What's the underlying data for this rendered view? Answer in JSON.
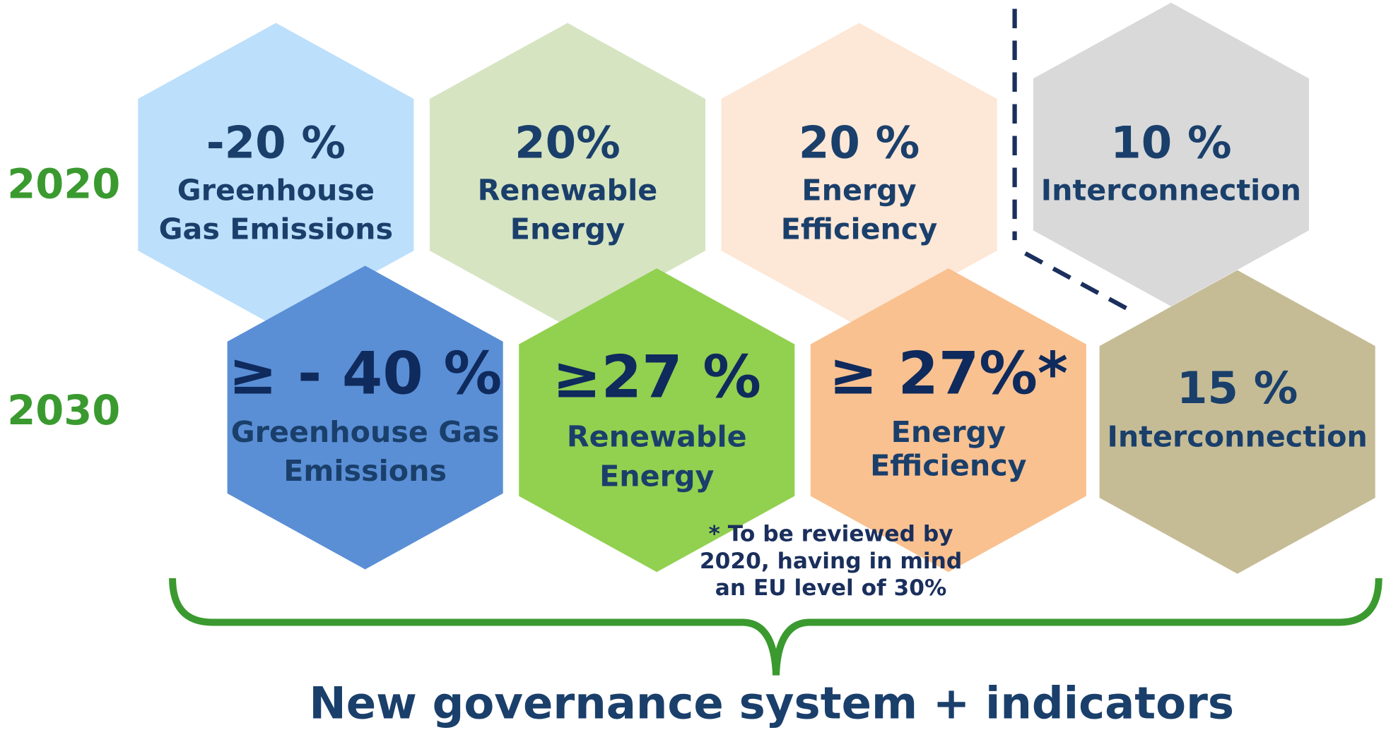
{
  "rows": [
    {
      "year": "2020",
      "items": [
        {
          "value": "-20 %",
          "lines": [
            "Greenhouse",
            "Gas Emissions"
          ]
        },
        {
          "value": "20%",
          "lines": [
            "Renewable",
            "Energy"
          ]
        },
        {
          "value": "20 %",
          "lines": [
            "Energy",
            "Efficiency"
          ]
        },
        {
          "value": "10 %",
          "lines": [
            "Interconnection"
          ]
        }
      ]
    },
    {
      "year": "2030",
      "items": [
        {
          "value": "≥ - 40 %",
          "lines": [
            "Greenhouse Gas",
            "Emissions"
          ]
        },
        {
          "value": "≥27 %",
          "lines": [
            "Renewable",
            "Energy"
          ]
        },
        {
          "value": "≥ 27%*",
          "lines": [
            "Energy",
            "Efficiency"
          ]
        },
        {
          "value": "15 %",
          "lines": [
            "Interconnection"
          ]
        }
      ]
    }
  ],
  "footnote": {
    "lines": [
      "* To be reviewed by",
      "2020, having in mind",
      "an EU level of 30%"
    ]
  },
  "title": "New governance system + indicators"
}
